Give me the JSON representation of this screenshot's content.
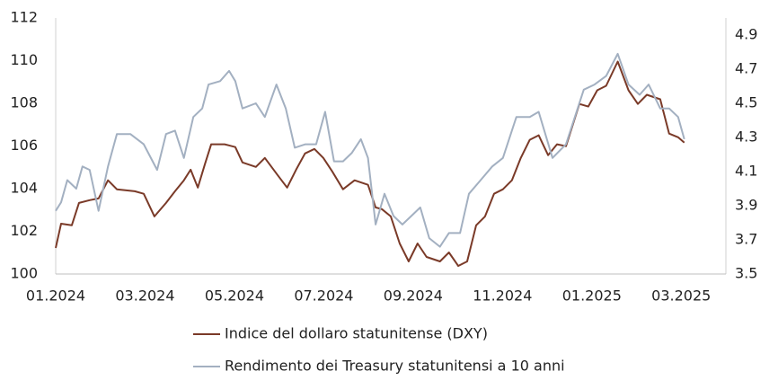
{
  "chart_data": {
    "type": "line",
    "xlim": [
      0,
      15
    ],
    "xticks": [
      {
        "value": 0,
        "label": "01.2024"
      },
      {
        "value": 2,
        "label": "03.2024"
      },
      {
        "value": 4,
        "label": "05.2024"
      },
      {
        "value": 6,
        "label": "07.2024"
      },
      {
        "value": 8,
        "label": "09.2024"
      },
      {
        "value": 10,
        "label": "11.2024"
      },
      {
        "value": 12,
        "label": "01.2025"
      },
      {
        "value": 14,
        "label": "03.2025"
      }
    ],
    "ylim": [
      100,
      112
    ],
    "yticks": [
      100,
      102,
      104,
      106,
      108,
      110,
      112
    ],
    "y2lim": [
      3.5,
      5.0
    ],
    "y2ticks": [
      3.5,
      3.7,
      3.9,
      4.1,
      4.3,
      4.5,
      4.7,
      4.9
    ],
    "series": [
      {
        "name": "Indice del dollaro statunitense (DXY)",
        "color": "#7a3a28",
        "axis": "y",
        "x": [
          0.0,
          0.12,
          0.36,
          0.52,
          0.76,
          0.96,
          1.17,
          1.37,
          1.77,
          1.97,
          2.21,
          2.47,
          2.67,
          2.87,
          3.02,
          3.18,
          3.34,
          3.48,
          3.78,
          4.02,
          4.18,
          4.48,
          4.68,
          4.98,
          5.18,
          5.38,
          5.58,
          5.79,
          5.99,
          6.19,
          6.43,
          6.69,
          6.99,
          7.16,
          7.3,
          7.5,
          7.7,
          7.9,
          8.1,
          8.3,
          8.6,
          8.8,
          9.01,
          9.21,
          9.41,
          9.61,
          9.81,
          10.01,
          10.21,
          10.41,
          10.61,
          10.81,
          11.02,
          11.22,
          11.42,
          11.72,
          11.92,
          12.12,
          12.32,
          12.58,
          12.82,
          13.03,
          13.23,
          13.53,
          13.73,
          13.93,
          14.07
        ],
        "values": [
          101.22,
          102.36,
          102.28,
          103.33,
          103.46,
          103.54,
          104.39,
          103.97,
          103.88,
          103.76,
          102.7,
          103.33,
          103.88,
          104.39,
          104.89,
          104.05,
          105.15,
          106.08,
          106.08,
          105.95,
          105.23,
          105.02,
          105.44,
          104.6,
          104.05,
          104.89,
          105.65,
          105.86,
          105.44,
          104.81,
          103.97,
          104.39,
          104.18,
          103.12,
          103.04,
          102.7,
          101.43,
          100.59,
          101.43,
          100.8,
          100.59,
          101.01,
          100.38,
          100.59,
          102.28,
          102.7,
          103.76,
          103.97,
          104.39,
          105.44,
          106.29,
          106.5,
          105.57,
          106.08,
          105.99,
          107.97,
          107.85,
          108.61,
          108.82,
          109.96,
          108.61,
          107.97,
          108.4,
          108.19,
          106.58,
          106.41,
          106.16
        ]
      },
      {
        "name": "Rendimento dei Treasury statunitensi a 10 anni",
        "color": "#a3b0c1",
        "axis": "y2",
        "x": [
          0.0,
          0.12,
          0.26,
          0.46,
          0.6,
          0.76,
          0.96,
          1.17,
          1.37,
          1.67,
          1.97,
          2.27,
          2.47,
          2.67,
          2.87,
          3.08,
          3.28,
          3.42,
          3.68,
          3.88,
          4.02,
          4.18,
          4.48,
          4.68,
          4.94,
          5.15,
          5.35,
          5.59,
          5.83,
          6.03,
          6.23,
          6.43,
          6.63,
          6.83,
          6.99,
          7.16,
          7.36,
          7.56,
          7.76,
          7.96,
          8.16,
          8.36,
          8.6,
          8.8,
          9.05,
          9.25,
          9.51,
          9.77,
          10.01,
          10.31,
          10.61,
          10.81,
          11.12,
          11.42,
          11.62,
          11.82,
          12.06,
          12.32,
          12.58,
          12.82,
          13.07,
          13.27,
          13.53,
          13.73,
          13.93,
          14.07
        ],
        "values": [
          3.87,
          3.92,
          4.05,
          4.0,
          4.13,
          4.11,
          3.87,
          4.13,
          4.32,
          4.32,
          4.26,
          4.11,
          4.32,
          4.34,
          4.18,
          4.42,
          4.47,
          4.61,
          4.63,
          4.69,
          4.63,
          4.47,
          4.5,
          4.42,
          4.61,
          4.47,
          4.24,
          4.26,
          4.26,
          4.45,
          4.16,
          4.16,
          4.21,
          4.29,
          4.18,
          3.79,
          3.97,
          3.84,
          3.79,
          3.84,
          3.89,
          3.71,
          3.66,
          3.74,
          3.74,
          3.97,
          4.05,
          4.13,
          4.18,
          4.42,
          4.42,
          4.45,
          4.18,
          4.26,
          4.42,
          4.58,
          4.61,
          4.66,
          4.79,
          4.61,
          4.55,
          4.61,
          4.47,
          4.47,
          4.42,
          4.29
        ]
      }
    ]
  }
}
